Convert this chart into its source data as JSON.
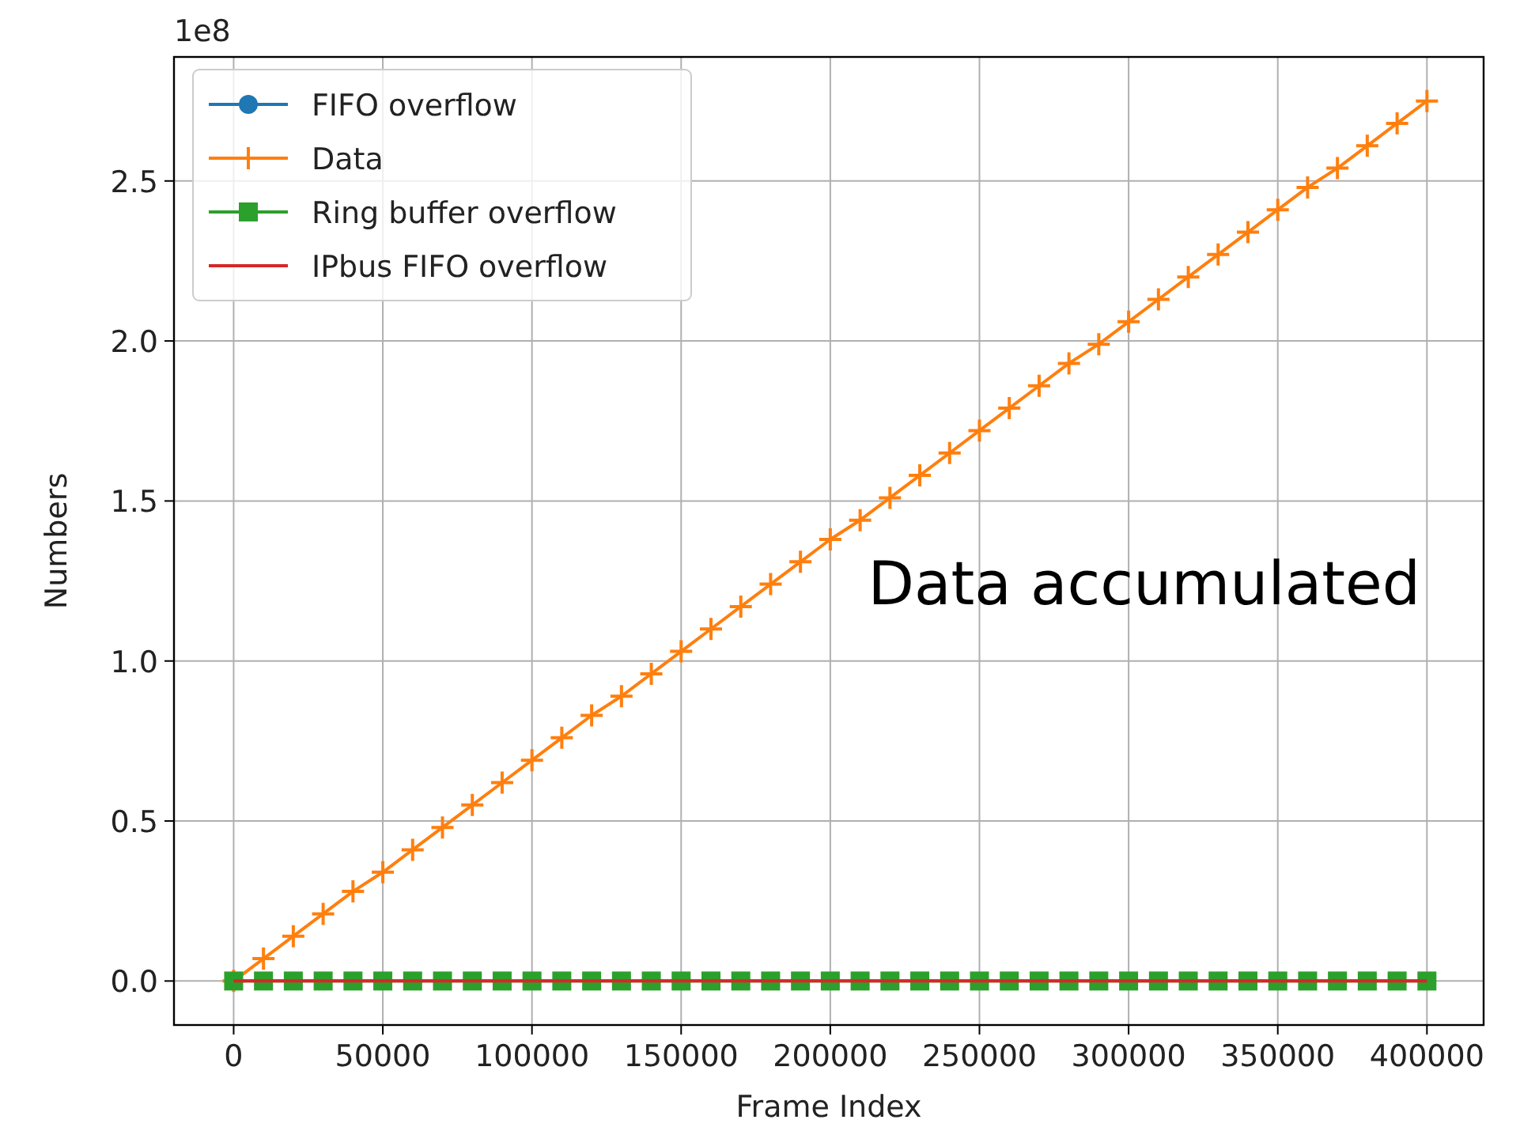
{
  "chart_data": {
    "type": "line",
    "xlabel": "Frame Index",
    "ylabel": "Numbers",
    "annotations": [
      "1e8",
      "Data accumulated"
    ],
    "x": [
      0,
      10000,
      20000,
      30000,
      40000,
      50000,
      60000,
      70000,
      80000,
      90000,
      100000,
      110000,
      120000,
      130000,
      140000,
      150000,
      160000,
      170000,
      180000,
      190000,
      200000,
      210000,
      220000,
      230000,
      240000,
      250000,
      260000,
      270000,
      280000,
      290000,
      300000,
      310000,
      320000,
      330000,
      340000,
      350000,
      360000,
      370000,
      380000,
      390000,
      400000
    ],
    "series": [
      {
        "name": "FIFO overflow",
        "color": "#1f77b4",
        "marker": "circle",
        "values": [
          null,
          null,
          null,
          null,
          null,
          null,
          null,
          null,
          null,
          null,
          null,
          null,
          null,
          null,
          null,
          null,
          null,
          null,
          null,
          null,
          null,
          null,
          null,
          null,
          null,
          null,
          null,
          null,
          null,
          null,
          null,
          null,
          null,
          null,
          null,
          null,
          null,
          null,
          null,
          null,
          null
        ]
      },
      {
        "name": "Data",
        "color": "#ff7f0e",
        "marker": "cross",
        "values": [
          0,
          0.07,
          0.14,
          0.21,
          0.28,
          0.34,
          0.41,
          0.48,
          0.55,
          0.62,
          0.69,
          0.76,
          0.83,
          0.89,
          0.96,
          1.03,
          1.1,
          1.17,
          1.24,
          1.31,
          1.38,
          1.44,
          1.51,
          1.58,
          1.65,
          1.72,
          1.79,
          1.86,
          1.93,
          1.99,
          2.06,
          2.13,
          2.2,
          2.27,
          2.34,
          2.41,
          2.48,
          2.54,
          2.61,
          2.68,
          2.75
        ]
      },
      {
        "name": "Ring buffer overflow",
        "color": "#2ca02c",
        "marker": "square",
        "values": [
          0,
          0,
          0,
          0,
          0,
          0,
          0,
          0,
          0,
          0,
          0,
          0,
          0,
          0,
          0,
          0,
          0,
          0,
          0,
          0,
          0,
          0,
          0,
          0,
          0,
          0,
          0,
          0,
          0,
          0,
          0,
          0,
          0,
          0,
          0,
          0,
          0,
          0,
          0,
          0,
          0
        ]
      },
      {
        "name": "IPbus FIFO overflow",
        "color": "#d62728",
        "marker": "none",
        "values": [
          0,
          0,
          0,
          0,
          0,
          0,
          0,
          0,
          0,
          0,
          0,
          0,
          0,
          0,
          0,
          0,
          0,
          0,
          0,
          0,
          0,
          0,
          0,
          0,
          0,
          0,
          0,
          0,
          0,
          0,
          0,
          0,
          0,
          0,
          0,
          0,
          0,
          0,
          0,
          0,
          0
        ]
      }
    ],
    "xlim": [
      -20000,
      419000
    ],
    "xticks": [
      0,
      50000,
      100000,
      150000,
      200000,
      250000,
      300000,
      350000,
      400000
    ],
    "ylim": [
      -0.1375,
      2.8875
    ],
    "yticks": [
      {
        "value": 0,
        "label": "0.0"
      },
      0.5,
      {
        "value": 1,
        "label": "1.0"
      },
      1.5,
      {
        "value": 2,
        "label": "2.0"
      },
      2.5
    ],
    "grid": true,
    "legend": "top left",
    "line_style": "solid"
  }
}
